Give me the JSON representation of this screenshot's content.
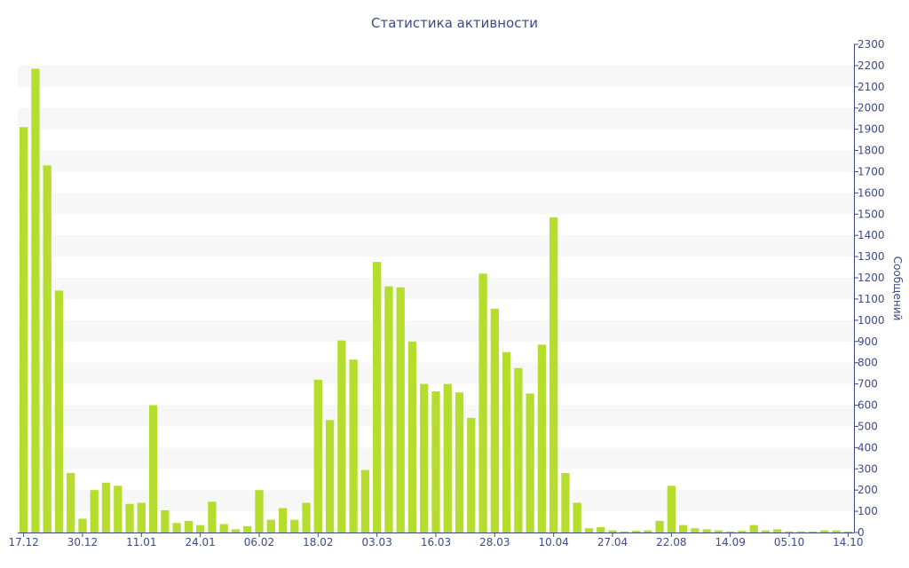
{
  "chart_data": {
    "type": "bar",
    "title": "Статистика активности",
    "ylabel": "Сообщений",
    "xlabel": "",
    "ylim": [
      0,
      2300
    ],
    "yticks": [
      0,
      100,
      200,
      300,
      400,
      500,
      600,
      700,
      800,
      900,
      1000,
      1100,
      1200,
      1300,
      1400,
      1500,
      1600,
      1700,
      1800,
      1900,
      2000,
      2100,
      2200,
      2300
    ],
    "y_axis_position": "right",
    "grid": "alternating horizontal bands",
    "bar_color": "#b5dd2e",
    "band_color": "#f7f7f7",
    "text_color": "#3b4a8a",
    "x_tick_labels": [
      {
        "label": "17.12",
        "index": 0
      },
      {
        "label": "30.12",
        "index": 5
      },
      {
        "label": "11.01",
        "index": 10
      },
      {
        "label": "24.01",
        "index": 15
      },
      {
        "label": "06.02",
        "index": 20
      },
      {
        "label": "18.02",
        "index": 25
      },
      {
        "label": "03.03",
        "index": 30
      },
      {
        "label": "16.03",
        "index": 35
      },
      {
        "label": "28.03",
        "index": 40
      },
      {
        "label": "10.04",
        "index": 45
      },
      {
        "label": "27.04",
        "index": 50
      },
      {
        "label": "22.08",
        "index": 55
      },
      {
        "label": "14.09",
        "index": 60
      },
      {
        "label": "05.10",
        "index": 65
      },
      {
        "label": "14.10",
        "index": 70
      }
    ],
    "values": [
      1910,
      2185,
      1730,
      1140,
      280,
      65,
      200,
      235,
      220,
      135,
      140,
      600,
      105,
      45,
      55,
      35,
      145,
      40,
      15,
      30,
      200,
      60,
      115,
      60,
      140,
      720,
      530,
      905,
      815,
      295,
      1275,
      1160,
      1155,
      900,
      700,
      665,
      700,
      660,
      540,
      1220,
      1055,
      850,
      775,
      655,
      885,
      1485,
      280,
      140,
      20,
      25,
      10,
      5,
      8,
      10,
      55,
      220,
      35,
      20,
      15,
      10,
      5,
      8,
      35,
      10,
      15,
      5,
      5,
      5,
      10,
      10,
      5
    ]
  }
}
